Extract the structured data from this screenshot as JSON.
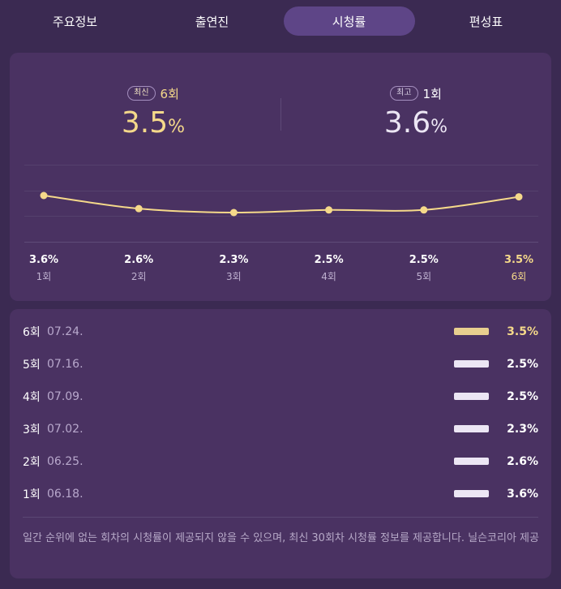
{
  "tabs": [
    {
      "label": "주요정보",
      "active": false
    },
    {
      "label": "출연진",
      "active": false
    },
    {
      "label": "시청률",
      "active": true
    },
    {
      "label": "편성표",
      "active": false
    }
  ],
  "summary": {
    "latest": {
      "badge": "최신",
      "episode": "6회",
      "value": "3.5",
      "unit": "%"
    },
    "best": {
      "badge": "최고",
      "episode": "1회",
      "value": "3.6",
      "unit": "%"
    }
  },
  "chart_data": {
    "type": "line",
    "x": [
      "1회",
      "2회",
      "3회",
      "4회",
      "5회",
      "6회"
    ],
    "values": [
      3.6,
      2.6,
      2.3,
      2.5,
      2.5,
      3.5
    ],
    "value_labels": [
      "3.6%",
      "2.6%",
      "2.3%",
      "2.5%",
      "2.5%",
      "3.5%"
    ],
    "highlight_index": 5,
    "line_color": "#f5d98a",
    "grid": true
  },
  "list": [
    {
      "episode": "6회",
      "date": "07.24.",
      "value": "3.5%",
      "highlight": true
    },
    {
      "episode": "5회",
      "date": "07.16.",
      "value": "2.5%",
      "highlight": false
    },
    {
      "episode": "4회",
      "date": "07.09.",
      "value": "2.5%",
      "highlight": false
    },
    {
      "episode": "3회",
      "date": "07.02.",
      "value": "2.3%",
      "highlight": false
    },
    {
      "episode": "2회",
      "date": "06.25.",
      "value": "2.6%",
      "highlight": false
    },
    {
      "episode": "1회",
      "date": "06.18.",
      "value": "3.6%",
      "highlight": false
    }
  ],
  "note": "일간 순위에 없는 회차의 시청률이 제공되지 않을 수 있으며, 최신 30회차 시청률 정보를 제공합니다. 닐슨코리아 제공",
  "colors": {
    "background": "#3b2a52",
    "card": "#4a3262",
    "active_tab": "#5e4587",
    "accent_yellow": "#f5d98a"
  }
}
